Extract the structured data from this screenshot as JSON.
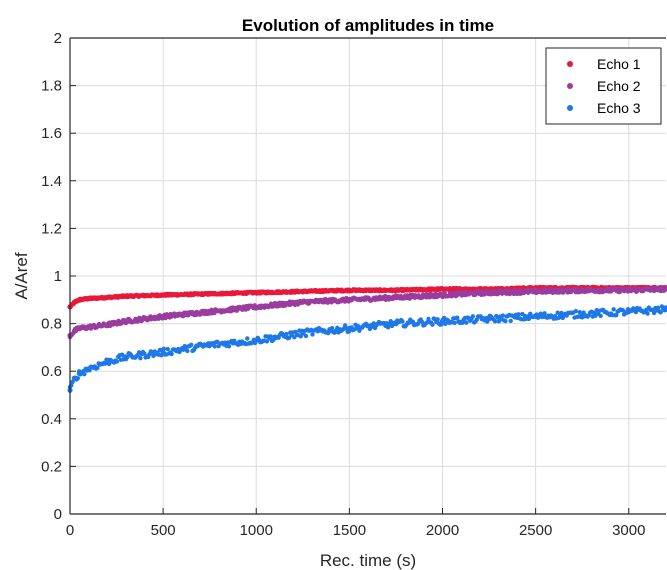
{
  "chart_data": {
    "type": "scatter",
    "title": "Evolution of amplitudes in time",
    "xlabel": "Rec. time (s)",
    "ylabel": "A/Aref",
    "xlim": [
      0,
      3200
    ],
    "ylim": [
      0,
      2
    ],
    "xticks": [
      "0",
      "500",
      "1000",
      "1500",
      "2000",
      "2500",
      "3000"
    ],
    "yticks": [
      "0",
      "0.2",
      "0.4",
      "0.6",
      "0.8",
      "1",
      "1.2",
      "1.4",
      "1.6",
      "1.8",
      "2"
    ],
    "grid": true,
    "legend_position": "top-right",
    "series": [
      {
        "name": "Echo 1",
        "color": "#e8193c",
        "x": [
          0,
          25,
          50,
          100,
          200,
          300,
          500,
          750,
          1000,
          1250,
          1500,
          1750,
          2000,
          2250,
          2500,
          2750,
          3000,
          3200
        ],
        "y": [
          0.87,
          0.89,
          0.9,
          0.905,
          0.91,
          0.915,
          0.92,
          0.925,
          0.93,
          0.935,
          0.94,
          0.94,
          0.945,
          0.945,
          0.95,
          0.95,
          0.95,
          0.95
        ]
      },
      {
        "name": "Echo 2",
        "color": "#9b3c9f",
        "x": [
          0,
          25,
          50,
          100,
          200,
          300,
          500,
          750,
          1000,
          1250,
          1500,
          1750,
          2000,
          2250,
          2500,
          2750,
          3000,
          3200
        ],
        "y": [
          0.75,
          0.77,
          0.78,
          0.785,
          0.795,
          0.81,
          0.83,
          0.85,
          0.87,
          0.89,
          0.9,
          0.91,
          0.92,
          0.93,
          0.935,
          0.94,
          0.94,
          0.945
        ]
      },
      {
        "name": "Echo 3",
        "color": "#1f78e8",
        "x": [
          0,
          25,
          50,
          100,
          200,
          300,
          500,
          750,
          1000,
          1250,
          1500,
          1750,
          2000,
          2250,
          2500,
          2750,
          3000,
          3200
        ],
        "y": [
          0.52,
          0.57,
          0.59,
          0.61,
          0.64,
          0.66,
          0.68,
          0.71,
          0.73,
          0.76,
          0.78,
          0.8,
          0.81,
          0.82,
          0.83,
          0.84,
          0.85,
          0.86
        ]
      }
    ]
  }
}
